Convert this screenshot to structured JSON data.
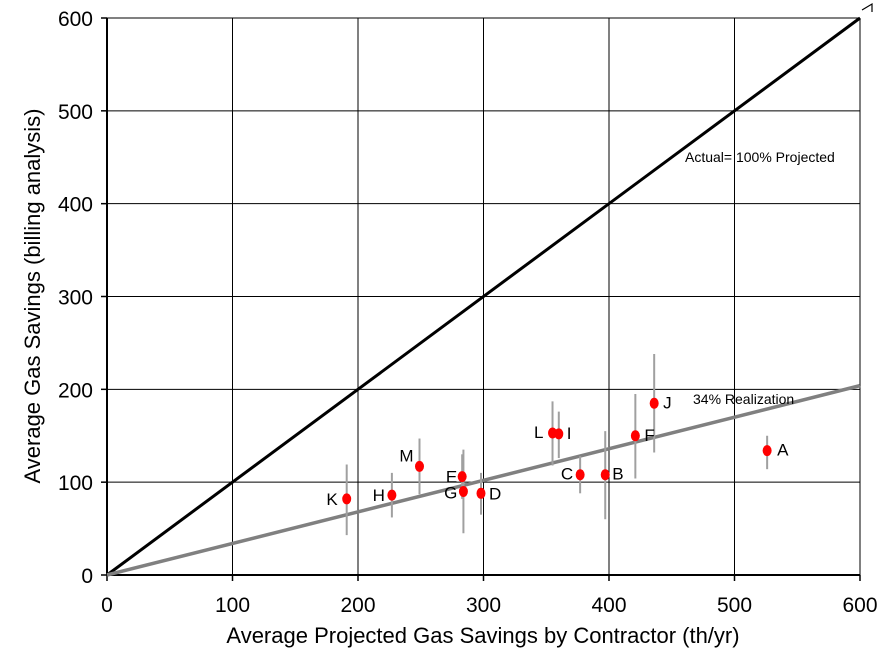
{
  "chart_data": {
    "type": "scatter",
    "title": "",
    "xlabel": "Average Projected Gas Savings by Contractor (th/yr)",
    "ylabel": "Average Gas Savings (billing analysis)",
    "xlim": [
      0,
      600
    ],
    "ylim": [
      0,
      600
    ],
    "xticks": [
      0,
      100,
      200,
      300,
      400,
      500,
      600
    ],
    "yticks": [
      0,
      100,
      200,
      300,
      400,
      500,
      600
    ],
    "grid": true,
    "colors": {
      "points": "#ff0000",
      "error_bars": "#a0a0a0",
      "line_100": "#000000",
      "line_34": "#808080",
      "grid": "#000000"
    },
    "lines": [
      {
        "label": "Actual= 100% Projected",
        "slope": 1.0
      },
      {
        "label": "34% Realization",
        "slope": 0.34
      }
    ],
    "points": [
      {
        "label": "A",
        "x": 526,
        "y": 134,
        "err_low": 114,
        "err_high": 150
      },
      {
        "label": "B",
        "x": 397,
        "y": 108,
        "err_low": 60,
        "err_high": 155
      },
      {
        "label": "C",
        "x": 377,
        "y": 108,
        "err_low": 88,
        "err_high": 128
      },
      {
        "label": "D",
        "x": 298,
        "y": 88,
        "err_low": 65,
        "err_high": 110
      },
      {
        "label": "E",
        "x": 283,
        "y": 106,
        "err_low": 82,
        "err_high": 130
      },
      {
        "label": "F",
        "x": 421,
        "y": 150,
        "err_low": 104,
        "err_high": 195
      },
      {
        "label": "G",
        "x": 284,
        "y": 90,
        "err_low": 45,
        "err_high": 135
      },
      {
        "label": "H",
        "x": 227,
        "y": 86,
        "err_low": 62,
        "err_high": 110
      },
      {
        "label": "I",
        "x": 360,
        "y": 152,
        "err_low": 126,
        "err_high": 176
      },
      {
        "label": "J",
        "x": 436,
        "y": 185,
        "err_low": 132,
        "err_high": 238
      },
      {
        "label": "K",
        "x": 191,
        "y": 82,
        "err_low": 43,
        "err_high": 119
      },
      {
        "label": "L",
        "x": 355,
        "y": 153,
        "err_low": 118,
        "err_high": 187
      },
      {
        "label": "M",
        "x": 249,
        "y": 117,
        "err_low": 87,
        "err_high": 147
      }
    ]
  }
}
